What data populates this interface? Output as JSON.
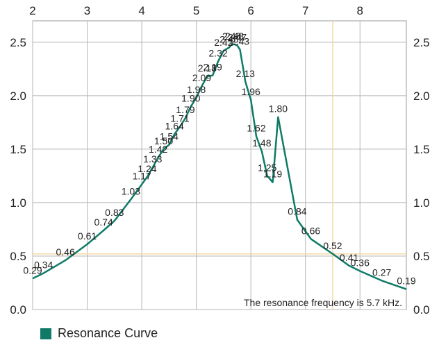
{
  "chart_data": {
    "type": "line",
    "title": "",
    "xlabel": "",
    "ylabel": "",
    "xlim": [
      2,
      8.85
    ],
    "ylim": [
      0,
      2.7
    ],
    "x_ticks": [
      "2",
      "3",
      "4",
      "5",
      "6",
      "7",
      "8"
    ],
    "y_ticks": [
      "0.0",
      "0.5",
      "1.0",
      "1.5",
      "2.0",
      "2.5"
    ],
    "grid": true,
    "legend_position": "bottom-left",
    "series": [
      {
        "name": "Resonance Curve",
        "color": "#0e7a67",
        "points": [
          {
            "x": 2.0,
            "y": 0.29,
            "label": "0.29"
          },
          {
            "x": 2.2,
            "y": 0.34,
            "label": "0.34"
          },
          {
            "x": 2.6,
            "y": 0.46,
            "label": "0.46"
          },
          {
            "x": 3.0,
            "y": 0.61,
            "label": "0.61"
          },
          {
            "x": 3.3,
            "y": 0.74,
            "label": "0.74"
          },
          {
            "x": 3.5,
            "y": 0.83,
            "label": "0.83"
          },
          {
            "x": 3.8,
            "y": 1.03,
            "label": "1.03"
          },
          {
            "x": 4.0,
            "y": 1.17,
            "label": "1.17"
          },
          {
            "x": 4.1,
            "y": 1.24,
            "label": "1.24"
          },
          {
            "x": 4.2,
            "y": 1.33,
            "label": "1.33"
          },
          {
            "x": 4.3,
            "y": 1.42,
            "label": "1.42"
          },
          {
            "x": 4.4,
            "y": 1.5,
            "label": "1.50"
          },
          {
            "x": 4.5,
            "y": 1.54,
            "label": "1.54"
          },
          {
            "x": 4.6,
            "y": 1.64,
            "label": "1.64"
          },
          {
            "x": 4.7,
            "y": 1.71,
            "label": "1.71"
          },
          {
            "x": 4.8,
            "y": 1.79,
            "label": "1.79"
          },
          {
            "x": 4.9,
            "y": 1.9,
            "label": "1.90"
          },
          {
            "x": 5.0,
            "y": 1.98,
            "label": "1.98"
          },
          {
            "x": 5.1,
            "y": 2.09,
            "label": "2.09"
          },
          {
            "x": 5.2,
            "y": 2.18,
            "label": "2.18"
          },
          {
            "x": 5.3,
            "y": 2.19,
            "label": "2.19"
          },
          {
            "x": 5.4,
            "y": 2.32,
            "label": "2.32"
          },
          {
            "x": 5.5,
            "y": 2.42,
            "label": "2.42"
          },
          {
            "x": 5.6,
            "y": 2.45,
            "label": "2.45"
          },
          {
            "x": 5.65,
            "y": 2.48,
            "label": "2.48"
          },
          {
            "x": 5.7,
            "y": 2.48,
            "label": "2.48"
          },
          {
            "x": 5.75,
            "y": 2.47,
            "label": "2.47"
          },
          {
            "x": 5.8,
            "y": 2.43,
            "label": "2.43"
          },
          {
            "x": 5.9,
            "y": 2.13,
            "label": "2.13"
          },
          {
            "x": 6.0,
            "y": 1.96,
            "label": "1.96"
          },
          {
            "x": 6.1,
            "y": 1.62,
            "label": "1.62"
          },
          {
            "x": 6.2,
            "y": 1.48,
            "label": "1.48"
          },
          {
            "x": 6.3,
            "y": 1.25,
            "label": "1.25"
          },
          {
            "x": 6.4,
            "y": 1.19,
            "label": "1.19"
          },
          {
            "x": 6.5,
            "y": 1.8,
            "label": "1.80"
          },
          {
            "x": 6.85,
            "y": 0.84,
            "label": "0.84"
          },
          {
            "x": 7.1,
            "y": 0.66,
            "label": "0.66"
          },
          {
            "x": 7.5,
            "y": 0.52,
            "label": "0.52"
          },
          {
            "x": 7.8,
            "y": 0.41,
            "label": "0.41"
          },
          {
            "x": 8.0,
            "y": 0.36,
            "label": "0.36"
          },
          {
            "x": 8.4,
            "y": 0.27,
            "label": "0.27"
          },
          {
            "x": 8.85,
            "y": 0.19,
            "label": "0.19"
          }
        ]
      }
    ],
    "reference_lines": {
      "vertical_x": 7.5,
      "horizontal_y": 0.52,
      "color": "#f5d9a8"
    },
    "annotation": "The resonance frequency is 5.7 kHz."
  }
}
